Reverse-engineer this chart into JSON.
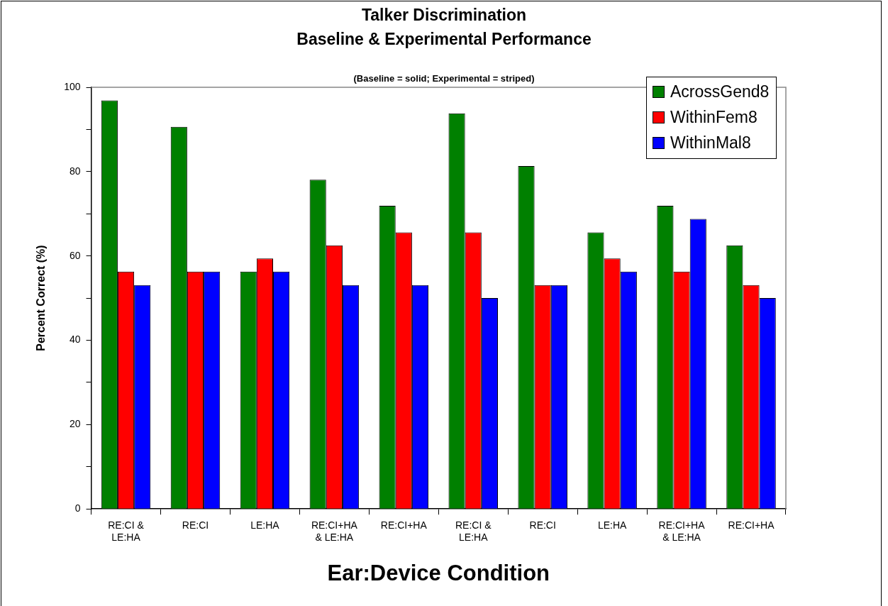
{
  "chart_data": {
    "type": "bar",
    "title": "Talker Discrimination",
    "subtitle": "Baseline  & Experimental Performance",
    "annotations": [
      "(Baseline = solid; Experimental = striped)"
    ],
    "xlabel": "Ear:Device Condition",
    "ylabel": "Percent Correct (%)",
    "categories": [
      "RE:CI & LE:HA",
      "RE:CI",
      "LE:HA",
      "RE:CI+HA & LE:HA",
      "RE:CI+HA",
      "RE:CI & LE:HA",
      "RE:CI",
      "LE:HA",
      "RE:CI+HA & LE:HA",
      "RE:CI+HA"
    ],
    "series": [
      {
        "name": "AcrossGend8",
        "color": "#008000",
        "values": [
          96.9,
          90.6,
          56.3,
          null,
          null,
          93.8,
          81.3,
          65.6,
          null,
          null
        ]
      },
      {
        "name": "WithinFem8",
        "color": "#ff0000",
        "values": [
          56.3,
          56.3,
          59.4,
          null,
          null,
          65.6,
          53.1,
          59.4,
          null,
          null
        ]
      },
      {
        "name": "WithinMal8",
        "color": "#0000ff",
        "values": [
          53.1,
          56.3,
          56.3,
          null,
          null,
          50.0,
          53.1,
          56.3,
          null,
          null
        ]
      },
      {
        "color": "#008000",
        "values": [
          null,
          null,
          null,
          78.1,
          71.9,
          null,
          null,
          null,
          71.9,
          62.5
        ]
      },
      {
        "color": "#ff0000",
        "values": [
          null,
          null,
          null,
          62.5,
          65.6,
          null,
          null,
          null,
          56.3,
          53.1
        ]
      },
      {
        "color": "#0000ff",
        "values": [
          null,
          null,
          null,
          53.1,
          53.1,
          null,
          null,
          null,
          68.8,
          50.0
        ]
      }
    ],
    "ylim": [
      0,
      100
    ],
    "yticks": [
      0,
      {
        "value": 10,
        "label": null
      },
      20,
      {
        "value": 30,
        "label": null
      },
      40,
      {
        "value": 50,
        "label": null
      },
      60,
      {
        "value": 70,
        "label": null
      },
      80,
      {
        "value": 90,
        "label": null
      },
      100
    ],
    "legend": "top right"
  }
}
